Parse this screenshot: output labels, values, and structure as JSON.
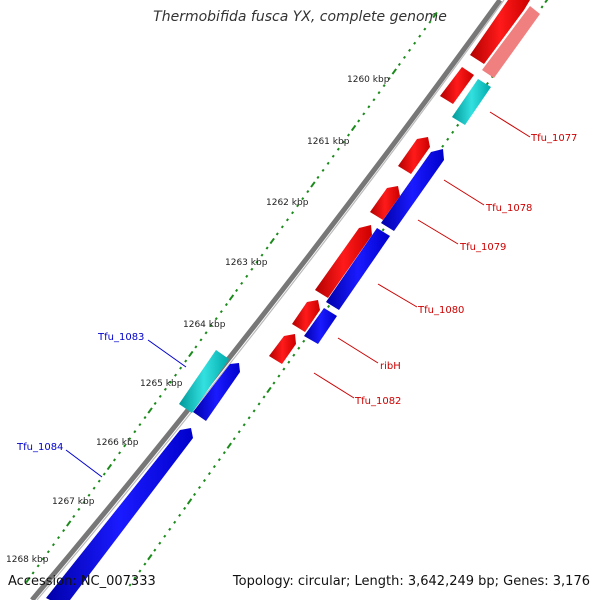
{
  "title": "Thermobifida fusca YX, complete genome",
  "footer": {
    "accession": "Accession: NC_007333",
    "summary": "Topology: circular; Length: 3,642,249 bp; Genes: 3,176"
  },
  "ruler": {
    "labels": [
      {
        "id": "1260",
        "text": "1260 kbp"
      },
      {
        "id": "1261",
        "text": "1261 kbp"
      },
      {
        "id": "1262",
        "text": "1262 kbp"
      },
      {
        "id": "1263",
        "text": "1263 kbp"
      },
      {
        "id": "1264",
        "text": "1264 kbp"
      },
      {
        "id": "1265",
        "text": "1265 kbp"
      },
      {
        "id": "1266",
        "text": "1266 kbp"
      },
      {
        "id": "1267",
        "text": "1267 kbp"
      },
      {
        "id": "1268",
        "text": "1268 kbp"
      }
    ]
  },
  "genes": [
    {
      "id": "tfu_1077",
      "label": "Tfu_1077"
    },
    {
      "id": "tfu_1078",
      "label": "Tfu_1078"
    },
    {
      "id": "tfu_1079",
      "label": "Tfu_1079"
    },
    {
      "id": "tfu_1080",
      "label": "Tfu_1080"
    },
    {
      "id": "ribh",
      "label": "ribH"
    },
    {
      "id": "tfu_1082",
      "label": "Tfu_1082"
    },
    {
      "id": "tfu_1083",
      "label": "Tfu_1083"
    },
    {
      "id": "tfu_1084",
      "label": "Tfu_1084"
    }
  ],
  "colors": {
    "forward_cds": "#ff0000",
    "forward_cds_light": "#f08080",
    "reverse_cds": "#0000ff",
    "rna": "#00cccc",
    "backbone": "#777777",
    "tick": "#1a8a1a",
    "forward_label": "#cc0000",
    "reverse_label": "#0000cc"
  }
}
